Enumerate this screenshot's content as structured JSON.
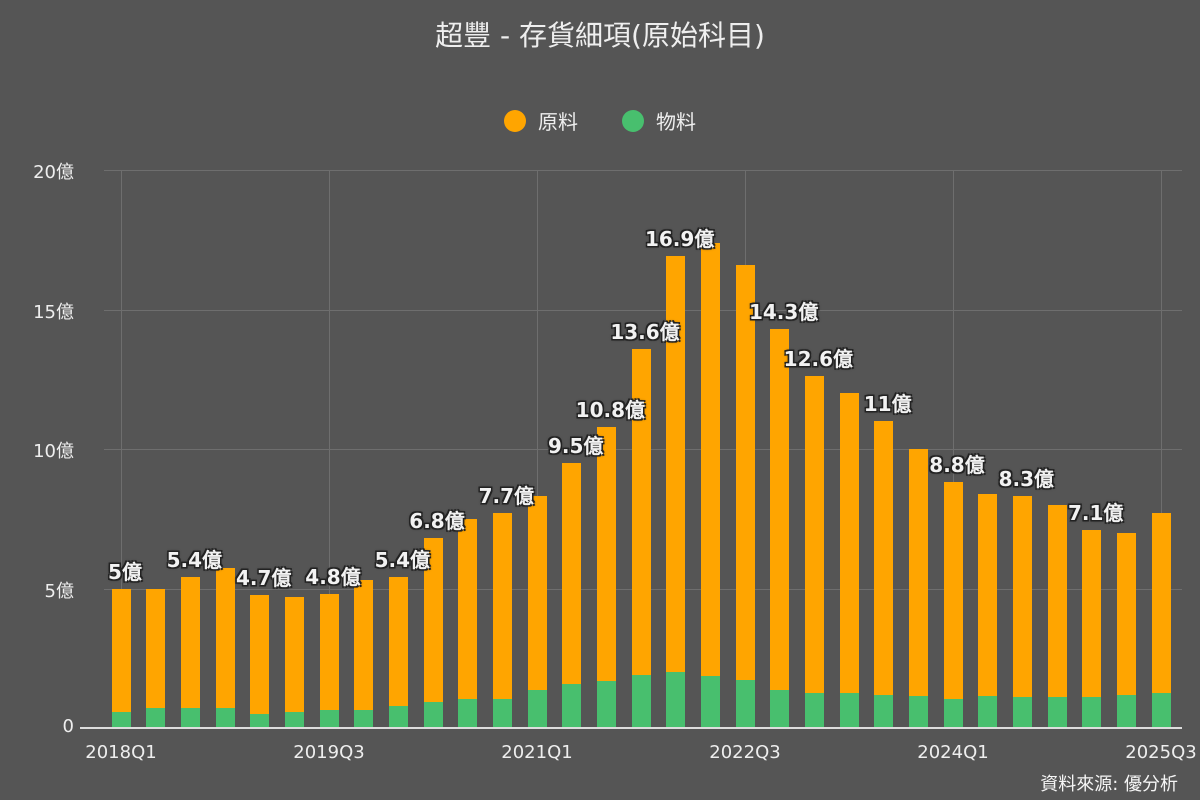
{
  "title": "超豐 - 存貨細項(原始科目)",
  "source": "資料來源: 優分析",
  "colors": {
    "background": "#555555",
    "raw_material": "#FFA500",
    "supplies": "#48BF6E",
    "grid": "#6e6e6e",
    "text": "#eeeeee"
  },
  "legend": [
    {
      "label": "原料",
      "color": "#FFA500"
    },
    {
      "label": "物料",
      "color": "#48BF6E"
    }
  ],
  "yaxis": {
    "ticks": [
      "0",
      "5億",
      "10億",
      "15億",
      "20億"
    ]
  },
  "xaxis": {
    "ticks": [
      "2018Q1",
      "2019Q3",
      "2021Q1",
      "2022Q3",
      "2024Q1",
      "2025Q3"
    ]
  },
  "chart_data": {
    "type": "bar",
    "stacked": true,
    "title": "超豐 - 存貨細項(原始科目)",
    "xlabel": "",
    "ylabel": "",
    "unit": "億",
    "ylim": [
      0,
      20
    ],
    "grid": true,
    "legend_position": "top",
    "categories": [
      "2018Q1",
      "2018Q2",
      "2018Q3",
      "2018Q4",
      "2019Q1",
      "2019Q2",
      "2019Q3",
      "2019Q4",
      "2020Q1",
      "2020Q2",
      "2020Q3",
      "2020Q4",
      "2021Q1",
      "2021Q2",
      "2021Q3",
      "2021Q4",
      "2022Q1",
      "2022Q2",
      "2022Q3",
      "2022Q4",
      "2023Q1",
      "2023Q2",
      "2023Q3",
      "2023Q4",
      "2024Q1",
      "2024Q2",
      "2024Q3",
      "2024Q4",
      "2025Q1",
      "2025Q2",
      "2025Q3"
    ],
    "series": [
      {
        "name": "物料",
        "color": "#48BF6E",
        "values": [
          0.57,
          0.71,
          0.71,
          0.71,
          0.5,
          0.57,
          0.64,
          0.64,
          0.79,
          0.93,
          1.05,
          1.05,
          1.35,
          1.56,
          1.69,
          1.9,
          2.0,
          1.86,
          1.71,
          1.36,
          1.26,
          1.26,
          1.19,
          1.14,
          1.04,
          1.14,
          1.12,
          1.12,
          1.12,
          1.19,
          1.26
        ]
      },
      {
        "name": "原料",
        "color": "#FFA500",
        "values": [
          4.43,
          4.29,
          4.69,
          5.04,
          4.25,
          4.13,
          4.16,
          4.66,
          4.61,
          5.87,
          6.45,
          6.65,
          6.95,
          7.94,
          9.11,
          11.7,
          14.9,
          15.54,
          14.89,
          12.94,
          11.34,
          10.74,
          9.81,
          8.86,
          7.76,
          7.26,
          7.18,
          6.88,
          5.98,
          5.81,
          6.44
        ]
      }
    ],
    "totals": [
      5.0,
      5.0,
      5.4,
      5.75,
      4.75,
      4.7,
      4.8,
      5.3,
      5.4,
      6.8,
      7.5,
      7.7,
      8.3,
      9.5,
      10.8,
      13.6,
      16.9,
      17.4,
      16.6,
      14.3,
      12.6,
      12.0,
      11.0,
      10.0,
      8.8,
      8.4,
      8.3,
      8.0,
      7.1,
      7.0,
      7.7
    ],
    "data_labels": [
      {
        "index": 0,
        "text": "5億"
      },
      {
        "index": 2,
        "text": "5.4億"
      },
      {
        "index": 4,
        "text": "4.7億"
      },
      {
        "index": 6,
        "text": "4.8億"
      },
      {
        "index": 8,
        "text": "5.4億"
      },
      {
        "index": 9,
        "text": "6.8億"
      },
      {
        "index": 11,
        "text": "7.7億"
      },
      {
        "index": 13,
        "text": "9.5億"
      },
      {
        "index": 14,
        "text": "10.8億"
      },
      {
        "index": 15,
        "text": "13.6億"
      },
      {
        "index": 16,
        "text": "16.9億"
      },
      {
        "index": 19,
        "text": "14.3億"
      },
      {
        "index": 20,
        "text": "12.6億"
      },
      {
        "index": 22,
        "text": "11億"
      },
      {
        "index": 24,
        "text": "8.8億"
      },
      {
        "index": 26,
        "text": "8.3億"
      },
      {
        "index": 28,
        "text": "7.1億"
      }
    ]
  }
}
